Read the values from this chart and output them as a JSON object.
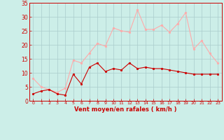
{
  "x": [
    0,
    1,
    2,
    3,
    4,
    5,
    6,
    7,
    8,
    9,
    10,
    11,
    12,
    13,
    14,
    15,
    16,
    17,
    18,
    19,
    20,
    21,
    22,
    23
  ],
  "vent_moyen": [
    2.5,
    3.5,
    4.0,
    2.5,
    2.0,
    9.5,
    6.0,
    12.0,
    13.5,
    10.5,
    11.5,
    11.0,
    13.5,
    11.5,
    12.0,
    11.5,
    11.5,
    11.0,
    10.5,
    10.0,
    9.5,
    9.5,
    9.5,
    9.5
  ],
  "rafales": [
    8.0,
    5.0,
    4.0,
    3.0,
    4.5,
    14.5,
    13.5,
    17.0,
    20.5,
    19.5,
    26.0,
    25.0,
    24.5,
    32.5,
    25.5,
    25.5,
    27.0,
    24.5,
    27.5,
    31.5,
    18.5,
    21.5,
    17.0,
    13.5
  ],
  "line_color_moyen": "#cc0000",
  "line_color_rafales": "#ffaaaa",
  "bg_color": "#cceee8",
  "grid_color": "#aacccc",
  "axis_color": "#cc0000",
  "text_color": "#cc0000",
  "xlabel": "Vent moyen/en rafales ( km/h )",
  "ylim": [
    0,
    35
  ],
  "yticks": [
    0,
    5,
    10,
    15,
    20,
    25,
    30,
    35
  ],
  "xlim": [
    -0.5,
    23.5
  ]
}
